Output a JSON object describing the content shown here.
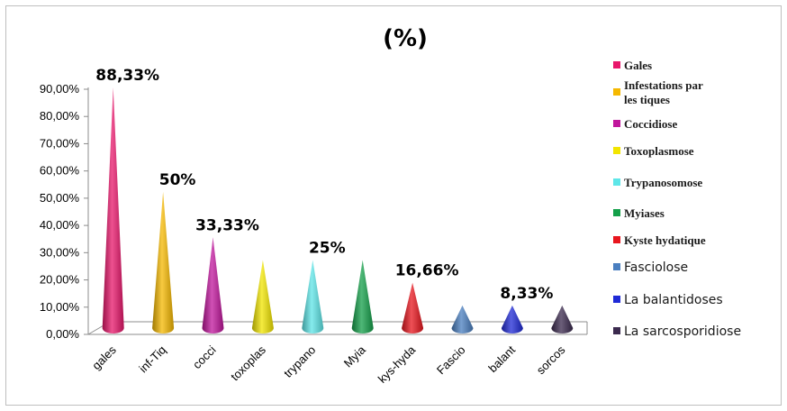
{
  "chart_data": {
    "type": "bar",
    "title": "(%)",
    "categories": [
      "gales",
      "inf-Tiq",
      "cocci",
      "toxoplas",
      "trypano",
      "Myia",
      "kys-hyda",
      "Fascio",
      "balant",
      "sorcos"
    ],
    "values": [
      88.33,
      50,
      33.33,
      25,
      25,
      25,
      16.66,
      8.33,
      8.33,
      8.33
    ],
    "data_labels": [
      "88,33%",
      "50%",
      "33,33%",
      "",
      "25%",
      "",
      "16,66%",
      "",
      "8,33%",
      ""
    ],
    "ylim": [
      0,
      90
    ],
    "yticks": [
      "0,00%",
      "10,00%",
      "20,00%",
      "30,00%",
      "40,00%",
      "50,00%",
      "60,00%",
      "70,00%",
      "80,00%",
      "90,00%"
    ],
    "colors": [
      "#e8176b",
      "#f5b800",
      "#c0169c",
      "#f2e500",
      "#5ee6e8",
      "#14a04a",
      "#e8161e",
      "#4a7fc0",
      "#1f2ad6",
      "#3b2a4e"
    ],
    "legend": {
      "placement": "right",
      "entries": [
        "Gales",
        "Infestations par\nles tiques",
        "Coccidiose",
        "Toxoplasmose",
        "Trypanosomose",
        "Myiases",
        "Kyste hydatique",
        "Fasciolose",
        "La balantidoses",
        "La sarcosporidiose"
      ]
    },
    "grid": false,
    "bar_shape": "cone"
  }
}
